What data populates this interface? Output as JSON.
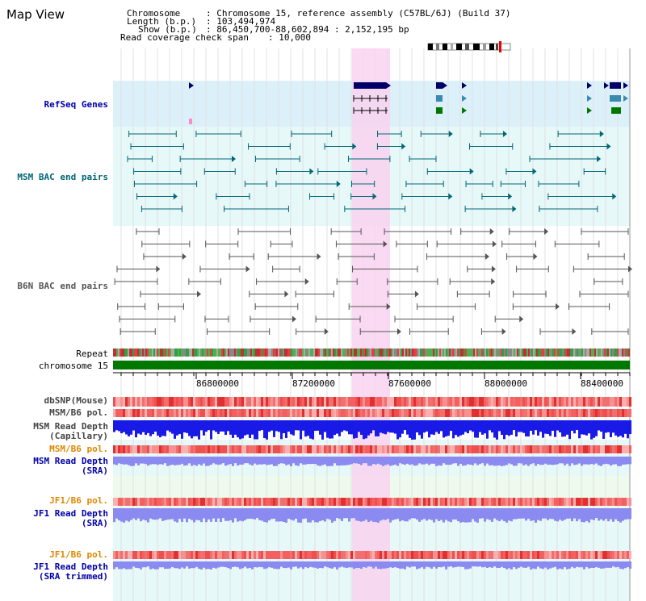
{
  "header": {
    "title": "Map View",
    "chromosome_label": "Chromosome",
    "chromosome_value": ": Chromosome 15, reference assembly (C57BL/6J) (Build 37)",
    "length_label": "Length (b.p.)",
    "length_value": ": 103,494,974",
    "show_label": "Show (b.p.)",
    "show_value": ": 86,450,700-88,602,894 : 2,152,195 bp",
    "coverage_label": "Read coverage check span",
    "coverage_value": ": 10,000"
  },
  "tracks": {
    "refseq": "RefSeq Genes",
    "msm_bac": "MSM BAC end pairs",
    "b6n_bac": "B6N BAC end pairs",
    "repeat": "Repeat",
    "chromosome": "chromosome 15",
    "dbsnp": "dbSNP(Mouse)",
    "msm_b6_pol_1": "MSM/B6 pol.",
    "msm_read_depth_cap": "MSM Read Depth",
    "msm_read_depth_cap_sub": "(Capillary)",
    "msm_b6_pol_2": "MSM/B6 pol.",
    "msm_read_depth_sra": "MSM Read Depth",
    "msm_read_depth_sra_sub": "(SRA)",
    "jf1_b6_pol_1": "JF1/B6 pol.",
    "jf1_read_depth_sra": "JF1 Read Depth",
    "jf1_read_depth_sra_sub": "(SRA)",
    "jf1_b6_pol_2": "JF1/B6 pol.",
    "jf1_read_depth_trim": "JF1 Read Depth",
    "jf1_read_depth_trim_sub": "(SRA trimmed)"
  },
  "axis": {
    "ticks": [
      "86800000",
      "87200000",
      "87600000",
      "88000000",
      "88400000"
    ]
  },
  "colors": {
    "refseq_bg": "#dcf0fa",
    "msm_bg": "#e6f8f8",
    "highlight": "#f8d4f0",
    "navy": "#000066",
    "teal": "#006677",
    "orange": "#dd8800",
    "chrom_green": "#007700",
    "depth_blue": "#1a1ae6",
    "depth_light": "#8a8af0"
  }
}
